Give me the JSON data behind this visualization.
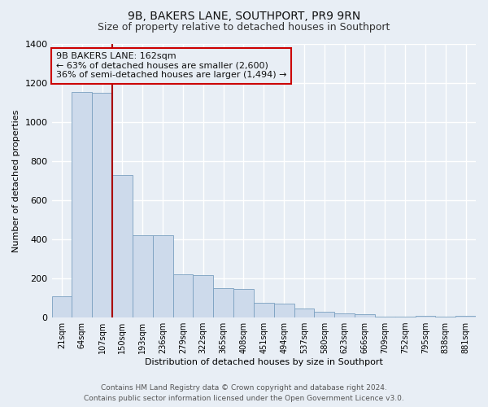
{
  "title": "9B, BAKERS LANE, SOUTHPORT, PR9 9RN",
  "subtitle": "Size of property relative to detached houses in Southport",
  "xlabel": "Distribution of detached houses by size in Southport",
  "ylabel": "Number of detached properties",
  "bar_labels": [
    "21sqm",
    "64sqm",
    "107sqm",
    "150sqm",
    "193sqm",
    "236sqm",
    "279sqm",
    "322sqm",
    "365sqm",
    "408sqm",
    "451sqm",
    "494sqm",
    "537sqm",
    "580sqm",
    "623sqm",
    "666sqm",
    "709sqm",
    "752sqm",
    "795sqm",
    "838sqm",
    "881sqm"
  ],
  "bar_values": [
    110,
    1155,
    1150,
    730,
    420,
    420,
    220,
    215,
    150,
    145,
    75,
    70,
    45,
    30,
    20,
    15,
    5,
    5,
    10,
    5,
    10
  ],
  "bar_color": "#cddaeb",
  "bar_edge_color": "#7aa0c0",
  "ylim": [
    0,
    1400
  ],
  "yticks": [
    0,
    200,
    400,
    600,
    800,
    1000,
    1200,
    1400
  ],
  "property_line_x": 2.5,
  "property_line_color": "#aa0000",
  "annotation_box_text": "9B BAKERS LANE: 162sqm\n← 63% of detached houses are smaller (2,600)\n36% of semi-detached houses are larger (1,494) →",
  "annotation_box_color": "#cc0000",
  "footer_line1": "Contains HM Land Registry data © Crown copyright and database right 2024.",
  "footer_line2": "Contains public sector information licensed under the Open Government Licence v3.0.",
  "bg_color": "#e8eef5",
  "grid_color": "#ffffff",
  "title_fontsize": 10,
  "subtitle_fontsize": 9,
  "annotation_fontsize": 8,
  "footer_fontsize": 6.5
}
